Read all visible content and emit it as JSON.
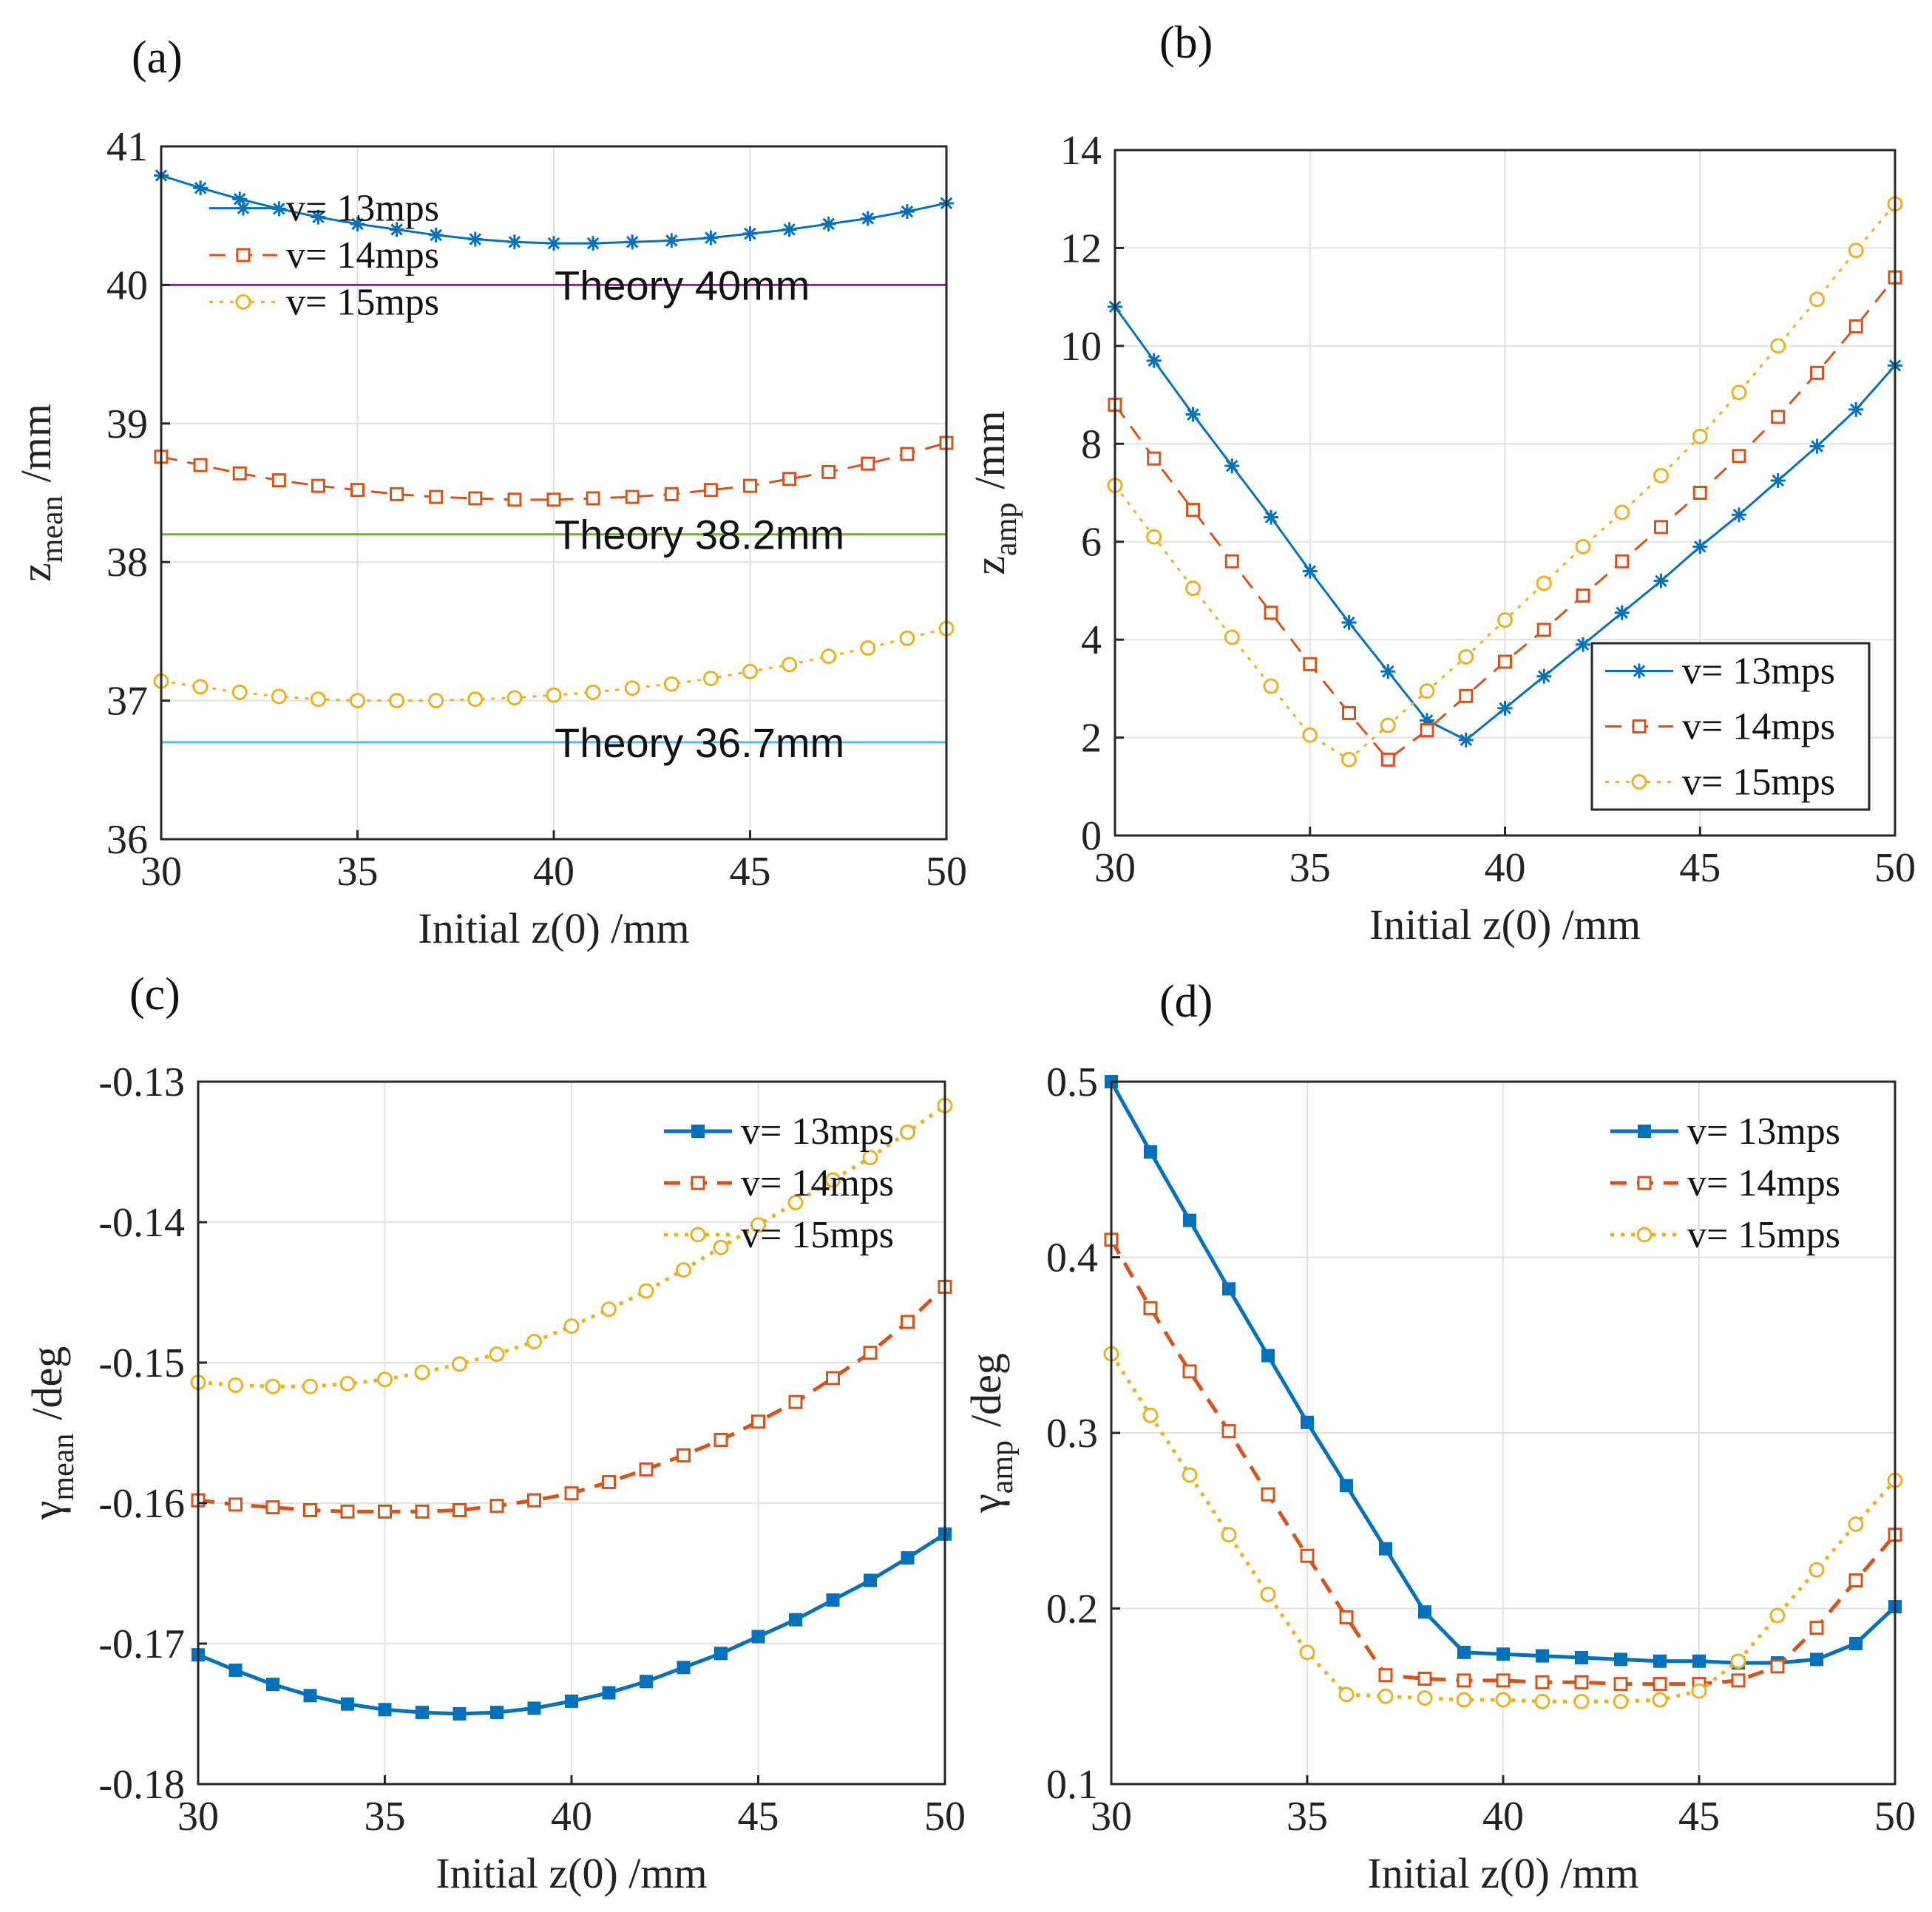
{
  "chart_data": [
    {
      "id": "a",
      "type": "line",
      "panel_label": "(a)",
      "xlabel": "Initial z(0)  /mm",
      "ylabel_main": "z",
      "ylabel_sub": "mean",
      "ylabel_unit": "/mm",
      "xlim": [
        30,
        50
      ],
      "ylim": [
        36,
        41
      ],
      "xticks": [
        "30",
        "35",
        "40",
        "45",
        "50"
      ],
      "yticks": [
        "36",
        "37",
        "38",
        "39",
        "40",
        "41"
      ],
      "grid": true,
      "legend_position": "top-left",
      "x": [
        30,
        31,
        32,
        33,
        34,
        35,
        36,
        37,
        38,
        39,
        40,
        41,
        42,
        43,
        44,
        45,
        46,
        47,
        48,
        49,
        50
      ],
      "series": [
        {
          "name": "v= 13mps",
          "color": "#0072BD",
          "marker": "star",
          "dash": "solid",
          "values": [
            40.79,
            40.7,
            40.62,
            40.55,
            40.49,
            40.44,
            40.4,
            40.36,
            40.33,
            40.31,
            40.3,
            40.3,
            40.31,
            40.32,
            40.34,
            40.37,
            40.4,
            40.44,
            40.48,
            40.53,
            40.59
          ]
        },
        {
          "name": "v= 14mps",
          "color": "#D95319",
          "marker": "square",
          "dash": "dash",
          "values": [
            38.76,
            38.7,
            38.64,
            38.59,
            38.55,
            38.52,
            38.49,
            38.47,
            38.46,
            38.45,
            38.45,
            38.46,
            38.47,
            38.49,
            38.52,
            38.55,
            38.6,
            38.65,
            38.71,
            38.78,
            38.86
          ]
        },
        {
          "name": "v= 15mps",
          "color": "#EDB120",
          "marker": "circle",
          "dash": "dot",
          "values": [
            37.14,
            37.1,
            37.06,
            37.03,
            37.01,
            37.0,
            37.0,
            37.0,
            37.01,
            37.02,
            37.04,
            37.06,
            37.09,
            37.12,
            37.16,
            37.21,
            37.26,
            37.32,
            37.38,
            37.45,
            37.52
          ]
        }
      ],
      "hlines": [
        {
          "y": 40.0,
          "label": "Theory 40mm",
          "color": "#7E2F8E"
        },
        {
          "y": 38.2,
          "label": "Theory 38.2mm",
          "color": "#77AC30"
        },
        {
          "y": 36.7,
          "label": "Theory 36.7mm",
          "color": "#4DBEEE"
        }
      ]
    },
    {
      "id": "b",
      "type": "line",
      "panel_label": "(b)",
      "xlabel": "Initial z(0)  /mm",
      "ylabel_main": "z",
      "ylabel_sub": "amp",
      "ylabel_unit": "/mm",
      "xlim": [
        30,
        50
      ],
      "ylim": [
        0,
        14
      ],
      "xticks": [
        "30",
        "35",
        "40",
        "45",
        "50"
      ],
      "yticks": [
        "0",
        "2",
        "4",
        "6",
        "8",
        "10",
        "12",
        "14"
      ],
      "grid": true,
      "legend_position": "bottom-right",
      "x": [
        30,
        31,
        32,
        33,
        34,
        35,
        36,
        37,
        38,
        39,
        40,
        41,
        42,
        43,
        44,
        45,
        46,
        47,
        48,
        49,
        50
      ],
      "series": [
        {
          "name": "v= 13mps",
          "color": "#0072BD",
          "marker": "star",
          "dash": "solid",
          "values": [
            10.8,
            9.7,
            8.6,
            7.55,
            6.5,
            5.4,
            4.35,
            3.35,
            2.35,
            1.95,
            2.6,
            3.25,
            3.9,
            4.55,
            5.2,
            5.9,
            6.55,
            7.25,
            7.95,
            8.7,
            9.6
          ]
        },
        {
          "name": "v= 14mps",
          "color": "#D95319",
          "marker": "square",
          "dash": "dash",
          "values": [
            8.8,
            7.7,
            6.65,
            5.6,
            4.55,
            3.5,
            2.5,
            1.55,
            2.15,
            2.85,
            3.55,
            4.2,
            4.9,
            5.6,
            6.3,
            7.0,
            7.75,
            8.55,
            9.45,
            10.4,
            11.4
          ]
        },
        {
          "name": "v= 15mps",
          "color": "#EDB120",
          "marker": "circle",
          "dash": "dot",
          "values": [
            7.15,
            6.1,
            5.05,
            4.05,
            3.05,
            2.05,
            1.55,
            2.25,
            2.95,
            3.65,
            4.4,
            5.15,
            5.9,
            6.6,
            7.35,
            8.15,
            9.05,
            10.0,
            10.95,
            11.95,
            12.9
          ]
        }
      ],
      "hlines": []
    },
    {
      "id": "c",
      "type": "line",
      "panel_label": "(c)",
      "xlabel": "Initial z(0)  /mm",
      "ylabel_main": "γ",
      "ylabel_sub": "mean",
      "ylabel_unit": "/deg",
      "xlim": [
        30,
        50
      ],
      "ylim": [
        -0.18,
        -0.13
      ],
      "xticks": [
        "30",
        "35",
        "40",
        "45",
        "50"
      ],
      "yticks": [
        "-0.18",
        "-0.17",
        "-0.16",
        "-0.15",
        "-0.14",
        "-0.13"
      ],
      "grid": true,
      "legend_position": "top-right",
      "x": [
        30,
        31,
        32,
        33,
        34,
        35,
        36,
        37,
        38,
        39,
        40,
        41,
        42,
        43,
        44,
        45,
        46,
        47,
        48,
        49,
        50
      ],
      "series": [
        {
          "name": "v= 13mps",
          "color": "#0072BD",
          "marker": "filled-square",
          "dash": "solid",
          "values": [
            -0.1708,
            -0.1719,
            -0.1729,
            -0.1737,
            -0.1743,
            -0.1747,
            -0.1749,
            -0.175,
            -0.1749,
            -0.1746,
            -0.1741,
            -0.1735,
            -0.1727,
            -0.1717,
            -0.1707,
            -0.1695,
            -0.1683,
            -0.1669,
            -0.1655,
            -0.1639,
            -0.1622
          ]
        },
        {
          "name": "v= 14mps",
          "color": "#D95319",
          "marker": "square",
          "dash": "dash",
          "values": [
            -0.1598,
            -0.1601,
            -0.1603,
            -0.1605,
            -0.1606,
            -0.1606,
            -0.1606,
            -0.1605,
            -0.1602,
            -0.1598,
            -0.1593,
            -0.1585,
            -0.1576,
            -0.1566,
            -0.1555,
            -0.1542,
            -0.1528,
            -0.1511,
            -0.1493,
            -0.1471,
            -0.1446
          ]
        },
        {
          "name": "v= 15mps",
          "color": "#EDB120",
          "marker": "circle",
          "dash": "dot",
          "values": [
            -0.1514,
            -0.1516,
            -0.1517,
            -0.1517,
            -0.1515,
            -0.1512,
            -0.1507,
            -0.1501,
            -0.1494,
            -0.1485,
            -0.1474,
            -0.1462,
            -0.1449,
            -0.1434,
            -0.1418,
            -0.1402,
            -0.1386,
            -0.137,
            -0.1354,
            -0.1336,
            -0.1317
          ]
        }
      ],
      "hlines": []
    },
    {
      "id": "d",
      "type": "line",
      "panel_label": "(d)",
      "xlabel": "Initial z(0)  /mm",
      "ylabel_main": "γ",
      "ylabel_sub": "amp",
      "ylabel_unit": "/deg",
      "xlim": [
        30,
        50
      ],
      "ylim": [
        0.1,
        0.5
      ],
      "xticks": [
        "30",
        "35",
        "40",
        "45",
        "50"
      ],
      "yticks": [
        "0.1",
        "0.2",
        "0.3",
        "0.4",
        "0.5"
      ],
      "grid": true,
      "legend_position": "top-right",
      "x": [
        30,
        31,
        32,
        33,
        34,
        35,
        36,
        37,
        38,
        39,
        40,
        41,
        42,
        43,
        44,
        45,
        46,
        47,
        48,
        49,
        50
      ],
      "series": [
        {
          "name": "v= 13mps",
          "color": "#0072BD",
          "marker": "filled-square",
          "dash": "solid",
          "values": [
            0.5,
            0.46,
            0.421,
            0.382,
            0.344,
            0.306,
            0.27,
            0.234,
            0.198,
            0.175,
            0.174,
            0.173,
            0.172,
            0.171,
            0.17,
            0.17,
            0.169,
            0.169,
            0.171,
            0.18,
            0.201
          ]
        },
        {
          "name": "v= 14mps",
          "color": "#D95319",
          "marker": "square",
          "dash": "dash",
          "values": [
            0.41,
            0.371,
            0.335,
            0.301,
            0.265,
            0.23,
            0.195,
            0.162,
            0.16,
            0.159,
            0.159,
            0.158,
            0.158,
            0.157,
            0.157,
            0.157,
            0.159,
            0.167,
            0.189,
            0.216,
            0.242
          ]
        },
        {
          "name": "v= 15mps",
          "color": "#EDB120",
          "marker": "circle",
          "dash": "dot",
          "values": [
            0.345,
            0.31,
            0.276,
            0.242,
            0.208,
            0.175,
            0.151,
            0.15,
            0.149,
            0.148,
            0.148,
            0.147,
            0.147,
            0.147,
            0.148,
            0.153,
            0.17,
            0.196,
            0.222,
            0.248,
            0.273
          ]
        }
      ],
      "hlines": []
    }
  ]
}
